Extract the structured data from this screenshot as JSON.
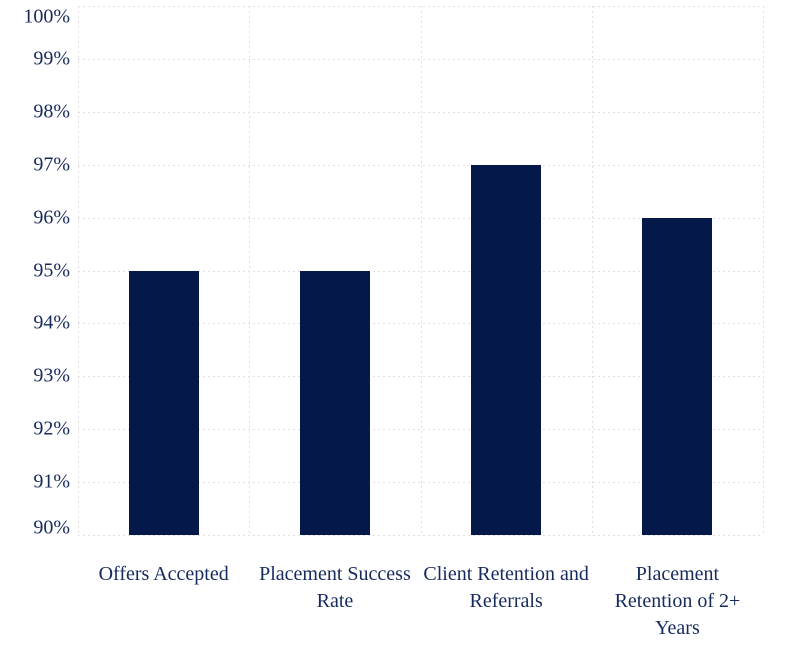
{
  "chart_data": {
    "type": "bar",
    "title": "",
    "xlabel": "",
    "ylabel": "",
    "categories": [
      "Offers Accepted",
      "Placement Success Rate",
      "Client Retention and Referrals",
      "Placement Retention of 2+ Years"
    ],
    "values": [
      95,
      95,
      97,
      96
    ],
    "value_labels": [
      "95%",
      "95%",
      "97%",
      "96%"
    ],
    "ylim": [
      90,
      100
    ],
    "ytick_step": 1,
    "yticks": [
      {
        "value": 100,
        "label": "100%"
      },
      {
        "value": 99,
        "label": "99%"
      },
      {
        "value": 98,
        "label": "98%"
      },
      {
        "value": 97,
        "label": "97%"
      },
      {
        "value": 96,
        "label": "96%"
      },
      {
        "value": 95,
        "label": "95%"
      },
      {
        "value": 94,
        "label": "94%"
      },
      {
        "value": 93,
        "label": "93%"
      },
      {
        "value": 92,
        "label": "92%"
      },
      {
        "value": 91,
        "label": "91%"
      },
      {
        "value": 90,
        "label": "90%"
      }
    ],
    "grid": {
      "horizontal": true,
      "vertical": true,
      "style": "dotted"
    },
    "legend": "none",
    "colors": {
      "bar": "#04194A",
      "axis_text": "#172A5E",
      "gridline": "#E0E0E0",
      "background": "#FFFFFF"
    }
  }
}
